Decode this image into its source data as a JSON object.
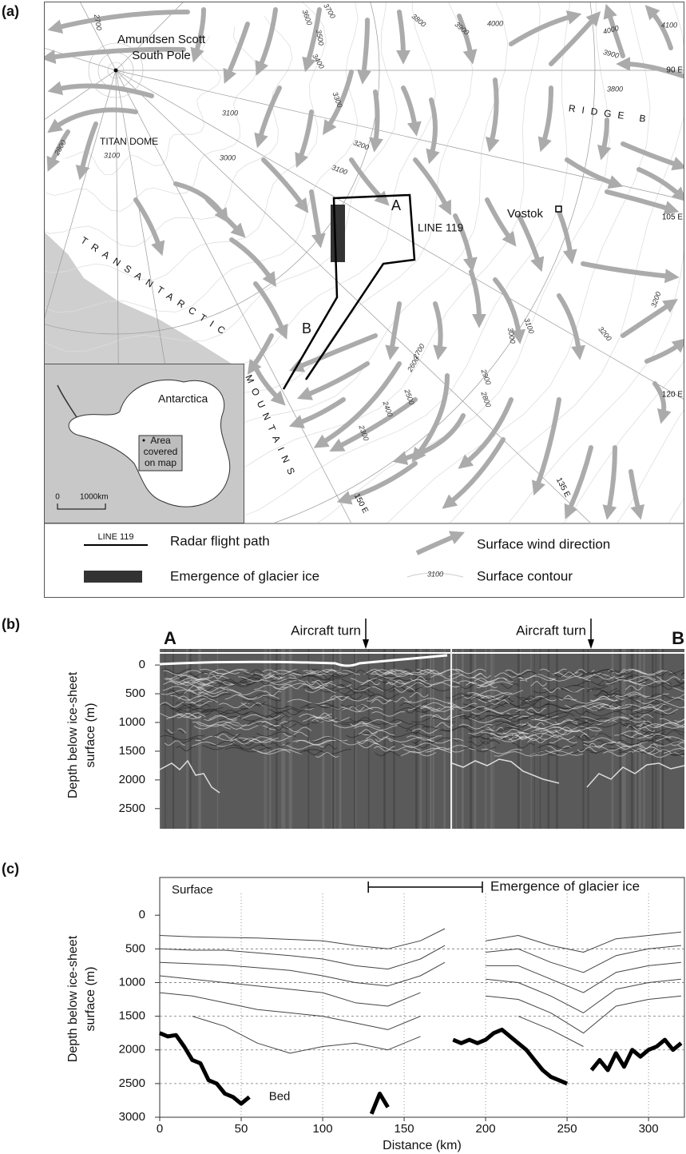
{
  "panel_a": {
    "label": "(a)",
    "pole_label": [
      "Amundsen Scott",
      "South Pole"
    ],
    "places": [
      "TITAN DOME",
      "RIDGE B",
      "Vostok",
      "LINE 119",
      "A",
      "B"
    ],
    "mountains": [
      "TRANSANTARCTIC",
      "MOUNTAINS"
    ],
    "longitudes": [
      "90 E",
      "105 E",
      "120 E",
      "135 E",
      "150 E"
    ],
    "contour_labels": [
      2700,
      3600,
      3700,
      3800,
      3900,
      4000,
      4000,
      4100,
      3900,
      3800,
      3500,
      3400,
      3300,
      3100,
      3200,
      3000,
      3100,
      2800,
      3100,
      3000,
      3100,
      3200,
      3200,
      2700,
      2600,
      2500,
      2400,
      2300,
      2900,
      2800
    ],
    "inset": {
      "title": "Antarctica",
      "area": [
        "Area",
        "covered",
        "on map"
      ],
      "scale": [
        "0",
        "1000km"
      ]
    },
    "legend": [
      {
        "symbol": "LINE 119",
        "label": "Radar flight path"
      },
      {
        "label": "Emergence of glacier ice"
      },
      {
        "label": "Surface wind direction"
      },
      {
        "symbol": "3100",
        "label": "Surface contour"
      }
    ]
  },
  "panel_b": {
    "label": "(b)",
    "start": "A",
    "end": "B",
    "turns": [
      "Aircraft turn",
      "Aircraft turn"
    ],
    "ylabel": [
      "Depth below ice-sheet",
      "surface (m)"
    ],
    "ylim": [
      -280,
      2850
    ],
    "yticks": [
      0,
      500,
      1000,
      1500,
      2000,
      2500
    ]
  },
  "chart_data": {
    "type": "line",
    "label": "(c)",
    "surface_label": "Surface",
    "bracket": {
      "label": "Emergence of glacier ice",
      "x": [
        128,
        198
      ]
    },
    "bed_label": "Bed",
    "xlabel": "Distance (km)",
    "ylabel": [
      "Depth below ice-sheet",
      "surface (m)"
    ],
    "xlim": [
      0,
      322
    ],
    "ylim": [
      -560,
      3000
    ],
    "y_inverted": true,
    "xticks": [
      0,
      50,
      100,
      150,
      200,
      250,
      300
    ],
    "yticks": [
      0,
      500,
      1000,
      1500,
      2000,
      2500,
      3000
    ],
    "grid": true,
    "series": [
      {
        "name": "Bed",
        "color": "#000000",
        "line_width": 5,
        "x": [
          0,
          5,
          10,
          15,
          20,
          25,
          30,
          35,
          40,
          45,
          50,
          55,
          60,
          65,
          70,
          75,
          80,
          85,
          90,
          95,
          100,
          105,
          110,
          115,
          120,
          125,
          130,
          135,
          140,
          145,
          150,
          155,
          160,
          165,
          170,
          175,
          180,
          185,
          190,
          195,
          200,
          205,
          210,
          215,
          220,
          225,
          230,
          235,
          240,
          245,
          250,
          255,
          260,
          265,
          270,
          275,
          280,
          285,
          290,
          295,
          300,
          305,
          310,
          315,
          320
        ],
        "values": [
          1750,
          1800,
          1780,
          1950,
          2150,
          2200,
          2450,
          2500,
          2650,
          2700,
          2800,
          2700,
          null,
          null,
          null,
          null,
          null,
          null,
          null,
          null,
          null,
          null,
          null,
          null,
          null,
          null,
          2950,
          2650,
          2850,
          null,
          null,
          null,
          null,
          null,
          null,
          null,
          1850,
          1900,
          1850,
          1900,
          1850,
          1750,
          1700,
          1800,
          1900,
          2000,
          2150,
          2300,
          2400,
          2450,
          2500,
          null,
          null,
          2300,
          2150,
          2300,
          2050,
          2250,
          2000,
          2100,
          2000,
          1950,
          1850,
          2000,
          1900
        ]
      },
      {
        "color": "#444444",
        "line_width": 1,
        "x": [
          0,
          20,
          40,
          60,
          80,
          100,
          120,
          140,
          160,
          175,
          180,
          200,
          220,
          240,
          260,
          280,
          300,
          320
        ],
        "values": [
          300,
          320,
          330,
          340,
          360,
          380,
          450,
          500,
          380,
          200,
          null,
          380,
          300,
          450,
          550,
          350,
          300,
          250
        ]
      },
      {
        "color": "#444444",
        "line_width": 1,
        "x": [
          0,
          20,
          40,
          60,
          80,
          100,
          120,
          140,
          160,
          175,
          180,
          200,
          220,
          240,
          260,
          280,
          300,
          320
        ],
        "values": [
          500,
          520,
          520,
          560,
          600,
          650,
          750,
          800,
          650,
          450,
          null,
          550,
          500,
          700,
          850,
          600,
          500,
          450
        ]
      },
      {
        "color": "#444444",
        "line_width": 1,
        "x": [
          0,
          20,
          40,
          60,
          80,
          100,
          120,
          140,
          160,
          175,
          180,
          200,
          220,
          240,
          260,
          280,
          300,
          320
        ],
        "values": [
          700,
          720,
          740,
          780,
          820,
          900,
          1000,
          1050,
          900,
          700,
          null,
          750,
          750,
          950,
          1150,
          850,
          750,
          700
        ]
      },
      {
        "color": "#444444",
        "line_width": 1,
        "x": [
          0,
          20,
          40,
          60,
          80,
          100,
          120,
          140,
          160,
          175,
          180,
          200,
          220,
          240,
          260,
          280,
          300,
          320
        ],
        "values": [
          900,
          950,
          1000,
          1050,
          1100,
          1150,
          1300,
          1350,
          1150,
          null,
          null,
          950,
          1000,
          1200,
          1450,
          1100,
          1000,
          950
        ]
      },
      {
        "color": "#444444",
        "line_width": 1,
        "x": [
          0,
          20,
          40,
          60,
          80,
          100,
          120,
          140,
          160,
          175,
          180,
          200,
          220,
          240,
          260,
          280,
          300,
          320
        ],
        "values": [
          1150,
          1200,
          1300,
          1400,
          1450,
          1500,
          1600,
          1700,
          1500,
          null,
          null,
          1200,
          1250,
          1450,
          1750,
          1350,
          1250,
          1200
        ]
      },
      {
        "color": "#444444",
        "line_width": 1,
        "x": [
          0,
          20,
          40,
          60,
          80,
          100,
          120,
          140,
          160,
          175,
          180,
          200,
          220,
          240,
          260,
          280,
          300,
          320
        ],
        "values": [
          null,
          1500,
          1650,
          1900,
          2050,
          1950,
          1900,
          2000,
          1800,
          null,
          null,
          null,
          1500,
          1700,
          1950,
          null,
          null,
          null
        ]
      }
    ]
  }
}
